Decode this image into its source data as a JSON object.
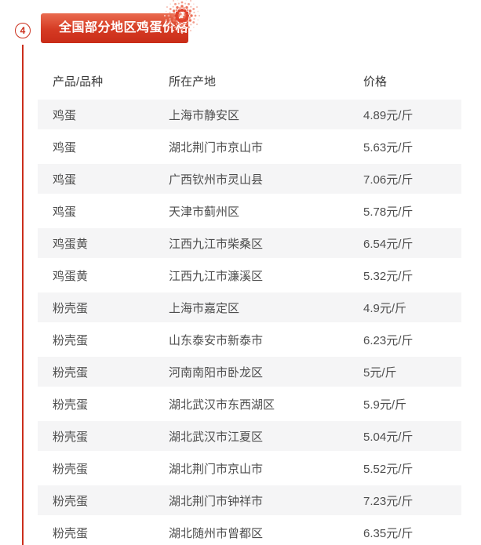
{
  "theme": {
    "accent_red": "#cb2e1b",
    "banner_gradient_top": "#ea6b4f",
    "banner_gradient_bottom": "#c92c18",
    "zebra_row_color": "#f5f5f6",
    "header_text_color": "#3b3b3b",
    "body_text_color": "#4e4e4e",
    "banner_text_color": "#ffffff"
  },
  "section": {
    "badge_number": "4",
    "title": "全国部分地区鸡蛋价格"
  },
  "icons": {
    "firework": "firework-burst"
  },
  "table": {
    "columns": [
      "产品/品种",
      "所在产地",
      "价格"
    ],
    "rows": [
      [
        "鸡蛋",
        "上海市静安区",
        "4.89元/斤"
      ],
      [
        "鸡蛋",
        "湖北荆门市京山市",
        "5.63元/斤"
      ],
      [
        "鸡蛋",
        "广西钦州市灵山县",
        "7.06元/斤"
      ],
      [
        "鸡蛋",
        "天津市蓟州区",
        "5.78元/斤"
      ],
      [
        "鸡蛋黄",
        "江西九江市柴桑区",
        "6.54元/斤"
      ],
      [
        "鸡蛋黄",
        "江西九江市濂溪区",
        "5.32元/斤"
      ],
      [
        "粉壳蛋",
        "上海市嘉定区",
        "4.9元/斤"
      ],
      [
        "粉壳蛋",
        "山东泰安市新泰市",
        "6.23元/斤"
      ],
      [
        "粉壳蛋",
        "河南南阳市卧龙区",
        "5元/斤"
      ],
      [
        "粉壳蛋",
        "湖北武汉市东西湖区",
        "5.9元/斤"
      ],
      [
        "粉壳蛋",
        "湖北武汉市江夏区",
        "5.04元/斤"
      ],
      [
        "粉壳蛋",
        "湖北荆门市京山市",
        "5.52元/斤"
      ],
      [
        "粉壳蛋",
        "湖北荆门市钟祥市",
        "7.23元/斤"
      ],
      [
        "粉壳蛋",
        "湖北随州市曾都区",
        "6.35元/斤"
      ]
    ]
  }
}
